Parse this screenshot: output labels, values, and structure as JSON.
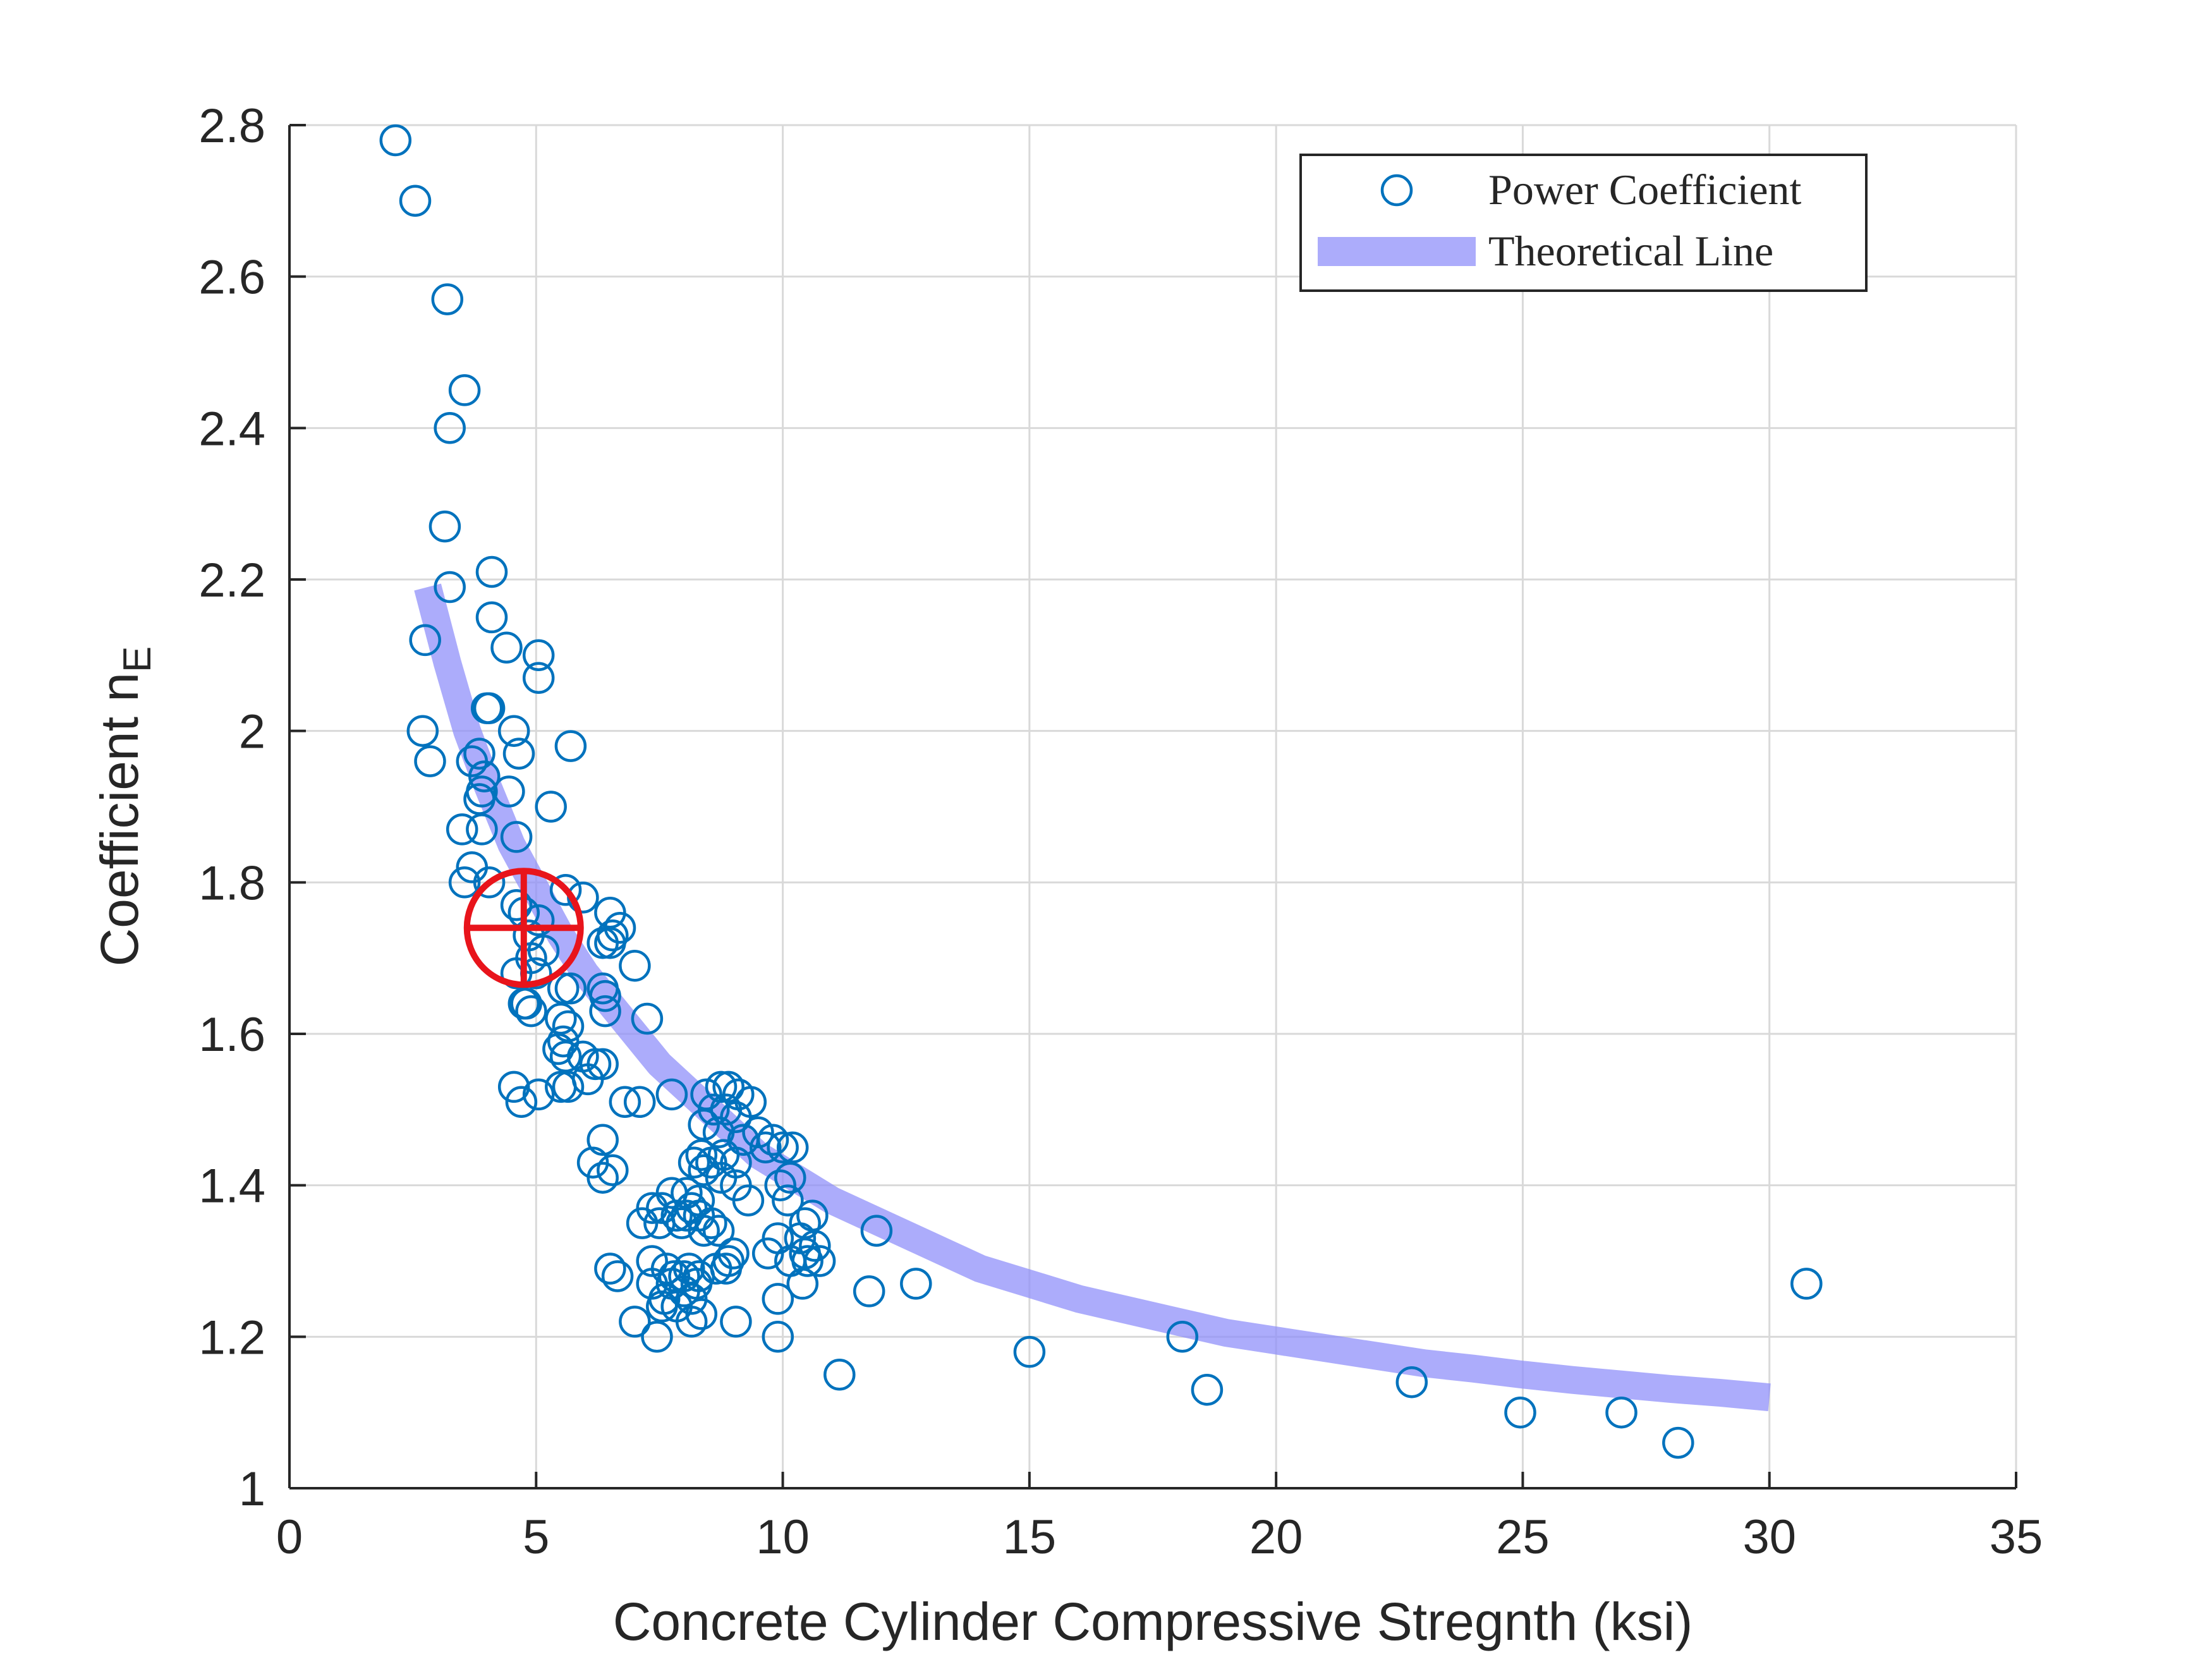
{
  "chart_data": {
    "type": "scatter",
    "xlabel": "Concrete Cylinder Compressive Stregnth (ksi)",
    "ylabel": "Coefficient n",
    "ylabel_subscript": "E",
    "xlim": [
      0,
      35
    ],
    "ylim": [
      1,
      2.8
    ],
    "xticks": [
      0,
      5,
      10,
      15,
      20,
      25,
      30,
      35
    ],
    "xtick_labels": [
      "0",
      "5",
      "10",
      "15",
      "20",
      "25",
      "30",
      "35"
    ],
    "yticks": [
      1,
      1.2,
      1.4,
      1.6,
      1.8,
      2,
      2.2,
      2.4,
      2.6,
      2.8
    ],
    "ytick_labels": [
      "1",
      "1.2",
      "1.4",
      "1.6",
      "1.8",
      "2",
      "2.2",
      "2.4",
      "2.6",
      "2.8"
    ],
    "grid": true,
    "legend_position": "top-right",
    "colors": {
      "marker": "#0072BD",
      "theory": "#8C8CFA",
      "target": "#E8141B",
      "grid": "#D9D9D9",
      "axis": "#262626"
    },
    "legend": [
      {
        "label": "Power Coefficient",
        "kind": "marker"
      },
      {
        "label": "Theoretical Line",
        "kind": "line"
      }
    ],
    "series": [
      {
        "name": "Power Coefficient",
        "kind": "scatter",
        "points": [
          [
            2.15,
            2.78
          ],
          [
            2.55,
            2.7
          ],
          [
            3.2,
            2.57
          ],
          [
            3.55,
            2.45
          ],
          [
            3.25,
            2.4
          ],
          [
            3.15,
            2.27
          ],
          [
            3.25,
            2.19
          ],
          [
            4.1,
            2.21
          ],
          [
            4.1,
            2.15
          ],
          [
            4.4,
            2.11
          ],
          [
            5.05,
            2.1
          ],
          [
            5.05,
            2.07
          ],
          [
            2.75,
            2.12
          ],
          [
            4.0,
            2.03
          ],
          [
            4.05,
            2.03
          ],
          [
            2.7,
            2.0
          ],
          [
            2.85,
            1.96
          ],
          [
            4.55,
            2.0
          ],
          [
            3.85,
            1.97
          ],
          [
            4.65,
            1.97
          ],
          [
            5.7,
            1.98
          ],
          [
            3.7,
            1.96
          ],
          [
            3.95,
            1.94
          ],
          [
            3.9,
            1.92
          ],
          [
            4.45,
            1.92
          ],
          [
            3.85,
            1.91
          ],
          [
            5.3,
            1.9
          ],
          [
            3.5,
            1.87
          ],
          [
            3.9,
            1.87
          ],
          [
            4.6,
            1.86
          ],
          [
            3.7,
            1.82
          ],
          [
            3.55,
            1.8
          ],
          [
            4.05,
            1.8
          ],
          [
            5.6,
            1.79
          ],
          [
            5.95,
            1.78
          ],
          [
            4.6,
            1.77
          ],
          [
            4.75,
            1.76
          ],
          [
            5.05,
            1.75
          ],
          [
            6.5,
            1.76
          ],
          [
            6.55,
            1.73
          ],
          [
            6.7,
            1.74
          ],
          [
            4.85,
            1.73
          ],
          [
            6.35,
            1.72
          ],
          [
            6.5,
            1.72
          ],
          [
            5.15,
            1.71
          ],
          [
            4.9,
            1.7
          ],
          [
            7.0,
            1.69
          ],
          [
            4.6,
            1.68
          ],
          [
            5.0,
            1.68
          ],
          [
            5.7,
            1.66
          ],
          [
            6.35,
            1.66
          ],
          [
            5.55,
            1.66
          ],
          [
            6.4,
            1.65
          ],
          [
            4.8,
            1.64
          ],
          [
            4.75,
            1.64
          ],
          [
            4.9,
            1.63
          ],
          [
            5.5,
            1.62
          ],
          [
            6.4,
            1.63
          ],
          [
            7.25,
            1.62
          ],
          [
            5.65,
            1.61
          ],
          [
            5.55,
            1.59
          ],
          [
            5.45,
            1.58
          ],
          [
            5.6,
            1.57
          ],
          [
            5.95,
            1.57
          ],
          [
            6.35,
            1.56
          ],
          [
            6.2,
            1.56
          ],
          [
            6.05,
            1.54
          ],
          [
            4.55,
            1.53
          ],
          [
            5.5,
            1.53
          ],
          [
            5.65,
            1.53
          ],
          [
            5.05,
            1.52
          ],
          [
            4.7,
            1.51
          ],
          [
            6.8,
            1.51
          ],
          [
            7.1,
            1.51
          ],
          [
            7.75,
            1.52
          ],
          [
            8.75,
            1.53
          ],
          [
            8.9,
            1.53
          ],
          [
            9.1,
            1.52
          ],
          [
            8.45,
            1.52
          ],
          [
            9.35,
            1.51
          ],
          [
            8.6,
            1.5
          ],
          [
            8.85,
            1.5
          ],
          [
            9.05,
            1.49
          ],
          [
            8.4,
            1.48
          ],
          [
            8.7,
            1.47
          ],
          [
            9.2,
            1.46
          ],
          [
            9.5,
            1.47
          ],
          [
            9.8,
            1.46
          ],
          [
            10.0,
            1.45
          ],
          [
            10.2,
            1.45
          ],
          [
            9.65,
            1.45
          ],
          [
            8.8,
            1.44
          ],
          [
            9.05,
            1.43
          ],
          [
            8.35,
            1.44
          ],
          [
            8.55,
            1.43
          ],
          [
            8.2,
            1.43
          ],
          [
            8.4,
            1.42
          ],
          [
            6.35,
            1.46
          ],
          [
            6.55,
            1.42
          ],
          [
            6.15,
            1.43
          ],
          [
            6.35,
            1.41
          ],
          [
            8.75,
            1.41
          ],
          [
            9.05,
            1.4
          ],
          [
            10.15,
            1.41
          ],
          [
            9.95,
            1.4
          ],
          [
            10.1,
            1.38
          ],
          [
            9.3,
            1.38
          ],
          [
            8.05,
            1.39
          ],
          [
            7.75,
            1.39
          ],
          [
            8.3,
            1.38
          ],
          [
            8.15,
            1.37
          ],
          [
            7.55,
            1.37
          ],
          [
            7.85,
            1.36
          ],
          [
            8.05,
            1.36
          ],
          [
            8.3,
            1.36
          ],
          [
            8.55,
            1.35
          ],
          [
            7.35,
            1.37
          ],
          [
            7.5,
            1.35
          ],
          [
            7.15,
            1.35
          ],
          [
            8.7,
            1.34
          ],
          [
            8.4,
            1.34
          ],
          [
            7.95,
            1.35
          ],
          [
            10.45,
            1.35
          ],
          [
            10.6,
            1.36
          ],
          [
            10.35,
            1.33
          ],
          [
            10.65,
            1.32
          ],
          [
            10.45,
            1.31
          ],
          [
            9.9,
            1.33
          ],
          [
            11.9,
            1.34
          ],
          [
            9.0,
            1.31
          ],
          [
            8.9,
            1.3
          ],
          [
            9.7,
            1.31
          ],
          [
            10.15,
            1.3
          ],
          [
            10.75,
            1.3
          ],
          [
            10.5,
            1.3
          ],
          [
            7.35,
            1.3
          ],
          [
            7.65,
            1.29
          ],
          [
            8.1,
            1.29
          ],
          [
            8.65,
            1.29
          ],
          [
            8.85,
            1.29
          ],
          [
            6.5,
            1.29
          ],
          [
            6.65,
            1.28
          ],
          [
            8.3,
            1.28
          ],
          [
            7.8,
            1.28
          ],
          [
            8.0,
            1.28
          ],
          [
            7.75,
            1.27
          ],
          [
            8.25,
            1.27
          ],
          [
            10.4,
            1.27
          ],
          [
            11.75,
            1.26
          ],
          [
            12.7,
            1.27
          ],
          [
            7.35,
            1.27
          ],
          [
            7.6,
            1.25
          ],
          [
            8.0,
            1.26
          ],
          [
            8.15,
            1.25
          ],
          [
            7.55,
            1.24
          ],
          [
            7.85,
            1.24
          ],
          [
            8.35,
            1.23
          ],
          [
            8.15,
            1.22
          ],
          [
            7.0,
            1.22
          ],
          [
            9.05,
            1.22
          ],
          [
            9.9,
            1.25
          ],
          [
            9.9,
            1.2
          ],
          [
            7.45,
            1.2
          ],
          [
            11.15,
            1.15
          ],
          [
            15.0,
            1.18
          ],
          [
            18.1,
            1.2
          ],
          [
            18.6,
            1.13
          ],
          [
            22.75,
            1.14
          ],
          [
            24.95,
            1.1
          ],
          [
            27.0,
            1.1
          ],
          [
            28.15,
            1.06
          ],
          [
            30.75,
            1.27
          ]
        ]
      },
      {
        "name": "Theoretical Line",
        "kind": "line",
        "points": [
          [
            2.8,
            2.19
          ],
          [
            3.2,
            2.09
          ],
          [
            3.6,
            2.0
          ],
          [
            4.0,
            1.93
          ],
          [
            4.5,
            1.85
          ],
          [
            5.0,
            1.79
          ],
          [
            5.5,
            1.73
          ],
          [
            6.0,
            1.68
          ],
          [
            6.5,
            1.64
          ],
          [
            7.0,
            1.6
          ],
          [
            7.5,
            1.56
          ],
          [
            8.0,
            1.53
          ],
          [
            8.5,
            1.5
          ],
          [
            9.0,
            1.47
          ],
          [
            9.5,
            1.44
          ],
          [
            10.0,
            1.42
          ],
          [
            11.0,
            1.38
          ],
          [
            12.0,
            1.35
          ],
          [
            13.0,
            1.32
          ],
          [
            14.0,
            1.29
          ],
          [
            15.0,
            1.27
          ],
          [
            16.0,
            1.25
          ],
          [
            17.0,
            1.235
          ],
          [
            18.0,
            1.22
          ],
          [
            19.0,
            1.205
          ],
          [
            20.0,
            1.195
          ],
          [
            21.0,
            1.185
          ],
          [
            22.0,
            1.175
          ],
          [
            23.0,
            1.165
          ],
          [
            24.0,
            1.158
          ],
          [
            25.0,
            1.15
          ],
          [
            26.0,
            1.143
          ],
          [
            27.0,
            1.137
          ],
          [
            28.0,
            1.131
          ],
          [
            29.0,
            1.126
          ],
          [
            30.0,
            1.12
          ]
        ]
      }
    ],
    "annotation": {
      "kind": "crosshair-circle",
      "x": 4.75,
      "y": 1.74
    }
  }
}
